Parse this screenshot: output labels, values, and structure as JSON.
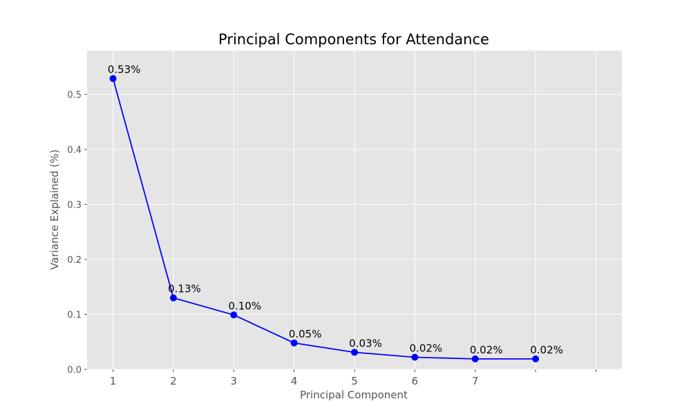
{
  "chart_data": {
    "type": "line",
    "title": "Principal Components for Attendance",
    "xlabel": "Principal Component",
    "ylabel": "Variance Explained (%)",
    "x": [
      1,
      2,
      3,
      4,
      5,
      6,
      7,
      8
    ],
    "values": [
      0.529,
      0.13,
      0.099,
      0.048,
      0.031,
      0.022,
      0.019,
      0.019
    ],
    "data_labels": [
      "0.53%",
      "0.13%",
      "0.10%",
      "0.05%",
      "0.03%",
      "0.02%",
      "0.02%",
      "0.02%"
    ],
    "x_ticks": [
      1,
      2,
      3,
      4,
      5,
      6,
      7,
      8,
      9
    ],
    "x_tick_labels": [
      "1",
      "2",
      "3",
      "4",
      "5",
      "6",
      "7",
      "",
      ""
    ],
    "y_ticks": [
      0.0,
      0.1,
      0.2,
      0.3,
      0.4,
      0.5
    ],
    "y_tick_labels": [
      "0.0",
      "0.1",
      "0.2",
      "0.3",
      "0.4",
      "0.5"
    ],
    "xlim": [
      0.57,
      9.43
    ],
    "ylim": [
      0.0,
      0.58
    ],
    "grid": true,
    "colors": {
      "line": "#0000ff",
      "marker": "#0000ff",
      "plot_background": "#e5e5e5",
      "grid": "#ffffff"
    }
  }
}
